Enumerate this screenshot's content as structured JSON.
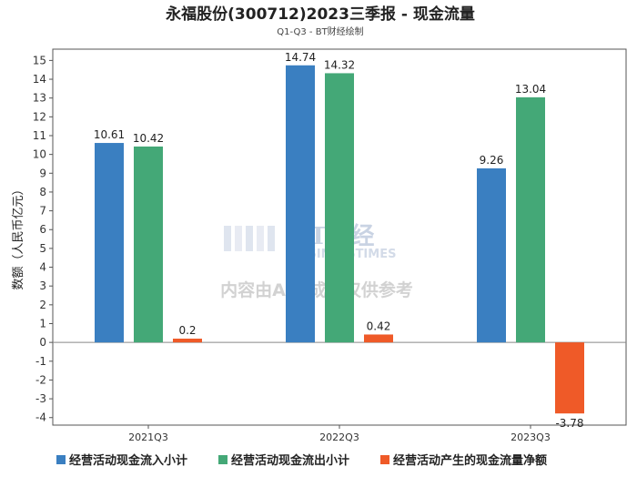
{
  "chart_data": {
    "type": "bar",
    "title": "永福股份(300712)2023三季报 - 现金流量",
    "subtitle": "Q1-Q3 - BT财经绘制",
    "ylabel": "数额（人民币亿元）",
    "xlabel": "",
    "categories": [
      "2021Q3",
      "2022Q3",
      "2023Q3"
    ],
    "ylim": [
      -4.4,
      15.6
    ],
    "yticks": [
      -4,
      -3,
      -2,
      -1,
      0,
      1,
      2,
      3,
      4,
      5,
      6,
      7,
      8,
      9,
      10,
      11,
      12,
      13,
      14,
      15
    ],
    "series": [
      {
        "name": "经营活动现金流入小计",
        "color": "#3a7fc1",
        "values": [
          10.61,
          14.74,
          9.26
        ]
      },
      {
        "name": "经营活动现金流出小计",
        "color": "#44a877",
        "values": [
          10.42,
          14.32,
          13.04
        ]
      },
      {
        "name": "经营活动产生的现金流量净额",
        "color": "#ef5a28",
        "values": [
          0.2,
          0.42,
          -3.78
        ]
      }
    ],
    "grid": false,
    "legend": "bottom"
  },
  "watermark": {
    "logo": "BT财经",
    "logo_sub": "BUSINESSTIMES",
    "note": "内容由AI生成，仅供参考"
  }
}
